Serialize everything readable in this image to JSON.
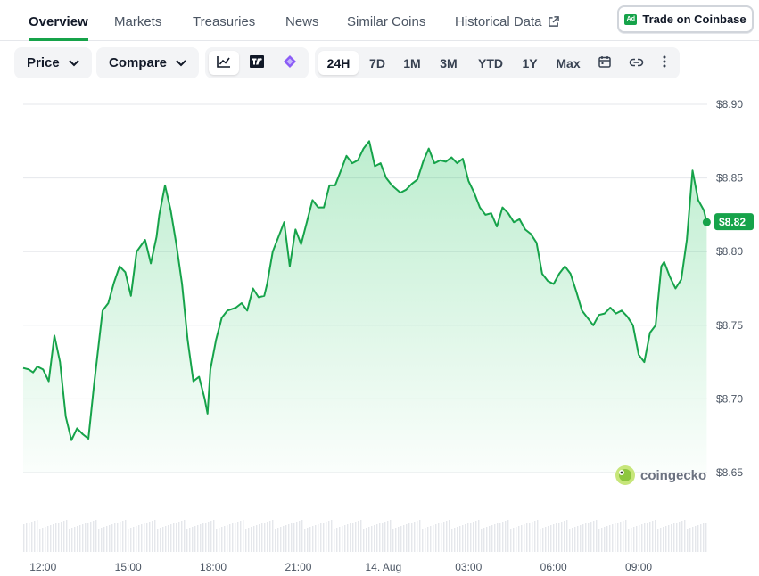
{
  "tabs": [
    {
      "label": "Overview",
      "active": true
    },
    {
      "label": "Markets"
    },
    {
      "label": "Treasuries"
    },
    {
      "label": "News"
    },
    {
      "label": "Similar Coins"
    },
    {
      "label": "Historical Data",
      "external": true
    }
  ],
  "coinbase_button": {
    "badge": "Ad",
    "label": "Trade on Coinbase"
  },
  "toolbar": {
    "price_label": "Price",
    "compare_label": "Compare",
    "chart_types": [
      {
        "icon": "line-chart-icon",
        "selected": true
      },
      {
        "icon": "tradingview-icon"
      },
      {
        "icon": "diamond-icon"
      }
    ],
    "ranges": [
      {
        "label": "24H",
        "selected": true
      },
      {
        "label": "7D"
      },
      {
        "label": "1M"
      },
      {
        "label": "3M"
      },
      {
        "label": "YTD"
      },
      {
        "label": "1Y"
      },
      {
        "label": "Max"
      }
    ],
    "tools": [
      "calendar-icon",
      "link-icon",
      "more-vertical-icon"
    ]
  },
  "watermark": "coingecko",
  "colors": {
    "accent": "#16a34a",
    "line": "#16a34a"
  },
  "chart_data": {
    "type": "area",
    "y_ticks": [
      "$8.90",
      "$8.85",
      "$8.80",
      "$8.75",
      "$8.70",
      "$8.65"
    ],
    "ylim": [
      8.65,
      8.9
    ],
    "x_ticks": [
      "12:00",
      "15:00",
      "18:00",
      "21:00",
      "14. Aug",
      "03:00",
      "06:00",
      "09:00"
    ],
    "current_price_label": "$8.82",
    "current_price": 8.82,
    "x": [
      0,
      0.2,
      0.35,
      0.5,
      0.7,
      0.9,
      1.1,
      1.3,
      1.5,
      1.7,
      1.9,
      2.1,
      2.3,
      2.5,
      2.8,
      3.0,
      3.2,
      3.4,
      3.6,
      3.8,
      4.0,
      4.3,
      4.5,
      4.7,
      4.8,
      5.0,
      5.2,
      5.4,
      5.6,
      5.8,
      6.0,
      6.2,
      6.4,
      6.5,
      6.6,
      6.8,
      7.0,
      7.2,
      7.5,
      7.7,
      7.9,
      8.1,
      8.3,
      8.5,
      8.6,
      8.8,
      9.0,
      9.2,
      9.4,
      9.6,
      9.8,
      10.0,
      10.2,
      10.4,
      10.6,
      10.8,
      11.0,
      11.2,
      11.4,
      11.6,
      11.8,
      12.0,
      12.2,
      12.4,
      12.6,
      12.8,
      13.0,
      13.3,
      13.5,
      13.7,
      13.9,
      14.1,
      14.3,
      14.5,
      14.7,
      14.9,
      15.1,
      15.3,
      15.5,
      15.7,
      15.9,
      16.1,
      16.3,
      16.5,
      16.7,
      16.9,
      17.1,
      17.3,
      17.5,
      17.7,
      17.9,
      18.1,
      18.3,
      18.5,
      18.7,
      18.9,
      19.1,
      19.3,
      19.5,
      19.7,
      19.9,
      20.1,
      20.3,
      20.5,
      20.7,
      20.9,
      21.1,
      21.3,
      21.5,
      21.7,
      21.9,
      22.1,
      22.3,
      22.5,
      22.6,
      22.8,
      23.0,
      23.2,
      23.4,
      23.6,
      23.8,
      24.0,
      24.1
    ],
    "y": [
      8.721,
      8.72,
      8.718,
      8.722,
      8.72,
      8.712,
      8.743,
      8.725,
      8.688,
      8.672,
      8.68,
      8.676,
      8.673,
      8.71,
      8.76,
      8.765,
      8.779,
      8.79,
      8.786,
      8.77,
      8.8,
      8.808,
      8.792,
      8.81,
      8.825,
      8.845,
      8.828,
      8.805,
      8.778,
      8.74,
      8.712,
      8.715,
      8.7,
      8.69,
      8.72,
      8.74,
      8.755,
      8.76,
      8.762,
      8.765,
      8.76,
      8.775,
      8.769,
      8.77,
      8.778,
      8.8,
      8.81,
      8.82,
      8.79,
      8.815,
      8.805,
      8.82,
      8.835,
      8.83,
      8.83,
      8.845,
      8.845,
      8.855,
      8.865,
      8.86,
      8.862,
      8.87,
      8.875,
      8.858,
      8.86,
      8.85,
      8.845,
      8.84,
      8.842,
      8.846,
      8.849,
      8.861,
      8.87,
      8.86,
      8.862,
      8.861,
      8.864,
      8.86,
      8.863,
      8.848,
      8.84,
      8.83,
      8.825,
      8.826,
      8.817,
      8.83,
      8.826,
      8.82,
      8.822,
      8.815,
      8.812,
      8.806,
      8.785,
      8.78,
      8.778,
      8.785,
      8.79,
      8.785,
      8.773,
      8.76,
      8.755,
      8.75,
      8.757,
      8.758,
      8.762,
      8.758,
      8.76,
      8.756,
      8.75,
      8.73,
      8.725,
      8.745,
      8.75,
      8.79,
      8.793,
      8.783,
      8.775,
      8.781,
      8.808,
      8.855,
      8.835,
      8.828,
      8.82
    ]
  }
}
